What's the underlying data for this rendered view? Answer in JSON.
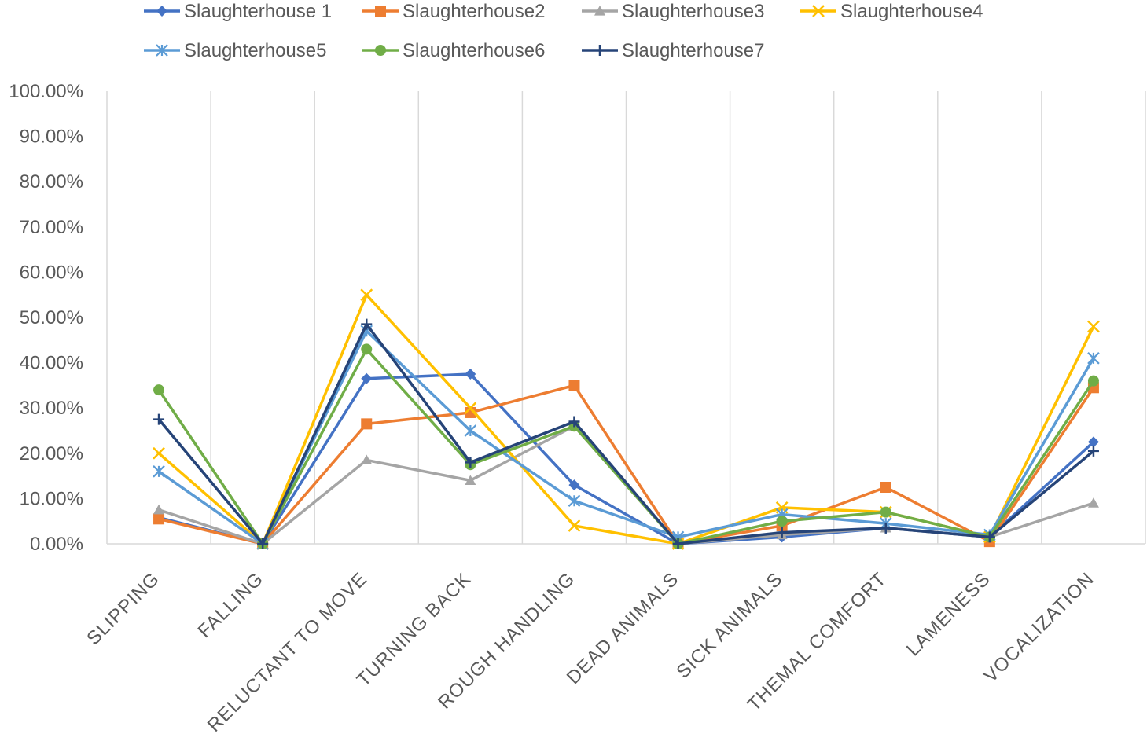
{
  "chart_data": {
    "type": "line",
    "title": "",
    "xlabel": "",
    "ylabel": "",
    "ylim": [
      0,
      1
    ],
    "y_ticks": [
      "0.00%",
      "10.00%",
      "20.00%",
      "30.00%",
      "40.00%",
      "50.00%",
      "60.00%",
      "70.00%",
      "80.00%",
      "90.00%",
      "100.00%"
    ],
    "categories": [
      "SLIPPING",
      "FALLING",
      "RELUCTANT TO MOVE",
      "TURNING BACK",
      "ROUGH HANDLING",
      "DEAD ANIMALS",
      "SICK ANIMALS",
      "THEMAL COMFORT",
      "LAMENESS",
      "VOCALIZATION"
    ],
    "legend_position": "top",
    "grid": "vertical",
    "series": [
      {
        "name": "Slaughterhouse 1",
        "color": "#4472C4",
        "marker": "diamond",
        "values": [
          0.058,
          0.0,
          0.365,
          0.375,
          0.13,
          0.0,
          0.015,
          0.035,
          0.015,
          0.225
        ]
      },
      {
        "name": "Slaughterhouse2",
        "color": "#ED7D31",
        "marker": "square",
        "values": [
          0.055,
          0.0,
          0.265,
          0.29,
          0.35,
          0.0,
          0.04,
          0.125,
          0.005,
          0.345
        ]
      },
      {
        "name": "Slaughterhouse3",
        "color": "#A5A5A5",
        "marker": "triangle",
        "values": [
          0.075,
          0.0,
          0.185,
          0.14,
          0.26,
          0.0,
          0.02,
          0.035,
          0.015,
          0.09
        ]
      },
      {
        "name": "Slaughterhouse4",
        "color": "#FFC000",
        "marker": "x",
        "values": [
          0.2,
          0.0,
          0.55,
          0.3,
          0.04,
          0.0,
          0.08,
          0.07,
          0.015,
          0.48
        ]
      },
      {
        "name": "Slaughterhouse5",
        "color": "#5B9BD5",
        "marker": "asterisk",
        "values": [
          0.16,
          0.0,
          0.47,
          0.25,
          0.095,
          0.015,
          0.065,
          0.045,
          0.02,
          0.41
        ]
      },
      {
        "name": "Slaughterhouse6",
        "color": "#70AD47",
        "marker": "circle",
        "values": [
          0.34,
          0.0,
          0.43,
          0.175,
          0.26,
          0.0,
          0.05,
          0.07,
          0.015,
          0.36
        ]
      },
      {
        "name": "Slaughterhouse7",
        "color": "#264478",
        "marker": "plus",
        "values": [
          0.275,
          0.0,
          0.485,
          0.18,
          0.27,
          0.0,
          0.025,
          0.035,
          0.015,
          0.205
        ]
      }
    ]
  }
}
